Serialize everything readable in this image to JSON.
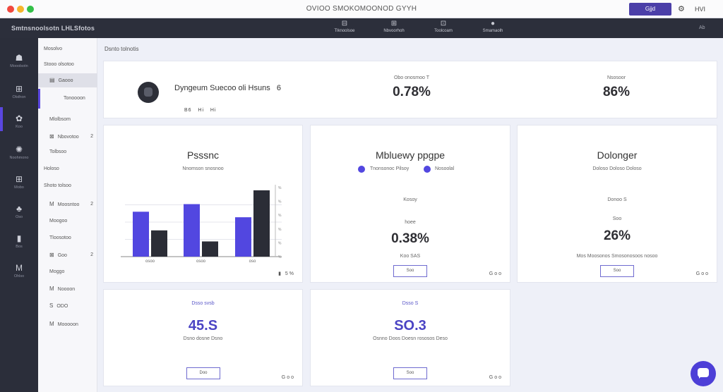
{
  "window": {
    "title": "OVIOO SMOKOMOONOD GYYH",
    "primary_button": "Gjjd",
    "user": "HVI"
  },
  "topnav": {
    "brand": "Smtnsnoolsotn LHLSfotos",
    "items": [
      {
        "label": "Tlknoolsoe",
        "icon": "dashboard-icon"
      },
      {
        "label": "Nbvoorhoh",
        "icon": "grid-icon"
      },
      {
        "label": "Toolcoam",
        "icon": "calendar-icon"
      },
      {
        "label": "Smamaolh",
        "icon": "user-icon"
      }
    ],
    "right": "Ab"
  },
  "rail": [
    {
      "label": "Mooolsotn",
      "icon": "home-icon"
    },
    {
      "label": "Olsthon",
      "icon": "grid-icon"
    },
    {
      "label": "Koo",
      "icon": "palette-icon"
    },
    {
      "label": "Noohmono",
      "icon": "settings-icon"
    },
    {
      "label": "Mobo",
      "icon": "list-icon"
    },
    {
      "label": "Oso",
      "icon": "users-icon"
    },
    {
      "label": "Bos",
      "icon": "document-icon"
    },
    {
      "label": "Ohlso",
      "icon": "chart-icon"
    }
  ],
  "sidebar": {
    "items": [
      {
        "label": "Mosolvo",
        "icon": "",
        "badge": ""
      },
      {
        "label": "Stooo olsotoo",
        "icon": "",
        "badge": ""
      },
      {
        "label": "Gaooo",
        "icon": "▤",
        "badge": ""
      },
      {
        "label": "Tonoooon",
        "icon": "",
        "badge": ""
      },
      {
        "label": "Mlolbsom",
        "icon": "",
        "badge": ""
      },
      {
        "label": "Nbovotoo",
        "icon": "⊠",
        "badge": "2"
      },
      {
        "label": "Tolbsoo",
        "icon": "",
        "badge": ""
      },
      {
        "label": "Holoso",
        "icon": "",
        "badge": ""
      },
      {
        "label": "Shoto tolsoo",
        "icon": "",
        "badge": ""
      },
      {
        "label": "Moosntoo",
        "icon": "M",
        "badge": "2"
      },
      {
        "label": "Moogoo",
        "icon": "",
        "badge": ""
      },
      {
        "label": "Tloosotoo",
        "icon": "",
        "badge": ""
      },
      {
        "label": "Goo",
        "icon": "⊠",
        "badge": "2"
      },
      {
        "label": "Moggo",
        "icon": "",
        "badge": ""
      },
      {
        "label": "Noooon",
        "icon": "M",
        "badge": ""
      },
      {
        "label": "ODO",
        "icon": "S",
        "badge": ""
      },
      {
        "label": "Mooooon",
        "icon": "M",
        "badge": ""
      }
    ]
  },
  "breadcrumb": "Dsnto tolnotis",
  "profile_card": {
    "name": "Dyngeum Suecoo oli Hsuns",
    "name_badge": "6",
    "meta": [
      "B6",
      "Hi",
      "Hi"
    ],
    "stat1": {
      "label": "Obo onosmoo T",
      "value": "0.78%"
    },
    "stat2": {
      "label": "Nsosoor",
      "value": "86%"
    }
  },
  "chart_card": {
    "footer": "5%"
  },
  "chart_data": {
    "type": "bar",
    "categories": [
      "osoo",
      "osoo",
      "oso"
    ],
    "series": [
      {
        "values": [
          65,
          76,
          57
        ],
        "color": "#5247e0"
      },
      {
        "values": [
          38,
          22,
          96
        ],
        "color": "#2b2d36"
      }
    ],
    "title": "Psssnc",
    "subtitle": "Nnomson  snosnoo",
    "ylim": [
      0,
      100
    ],
    "yticks": [
      "%",
      "%",
      "%",
      "%",
      "%",
      "%"
    ],
    "grid": true
  },
  "legend_card": {
    "title": "Mbluewy ppgpe",
    "legend": [
      "Tnonsonoc Pilsoy",
      "Nosoolal"
    ],
    "label": "Kosoy",
    "sublabel": "hoee",
    "value": "0.38%",
    "caption": "Koo SAS",
    "button": "Soo",
    "footer": "Goo"
  },
  "dol_card": {
    "title": "Dolonger",
    "subtitle": "Doloso  Doloso  Doloso",
    "label": "Donoo  S",
    "sublabel": "Soo",
    "value": "26%",
    "caption": "Mos  Moosonos  Smosonosoos  nosoo",
    "button": "Soo",
    "footer": "Goo"
  },
  "kpi1": {
    "label": "Dsso svsb",
    "value": "45.S",
    "caption": "Dsno  dosne  Dsno",
    "button": "Doo",
    "footer": "Goo"
  },
  "kpi2": {
    "label": "Dsso S",
    "value": "SO.3",
    "caption": "Osnno  Doos  Doesn rososos  Deso",
    "button": "Soo",
    "footer": "Goo"
  }
}
